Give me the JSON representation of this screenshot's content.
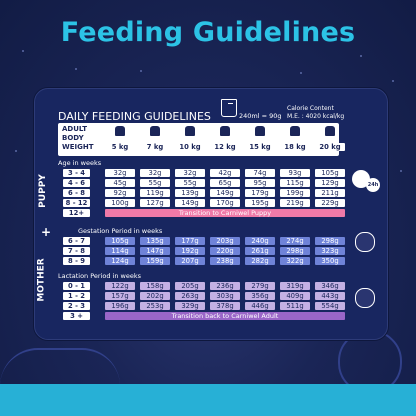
{
  "title": "Feeding Guidelines",
  "card_title": "DAILY FEEDING GUIDELINES",
  "measure": "240ml = 90g",
  "calorie": [
    "Calorie Content",
    "M.E. : 4020 kcal/kg"
  ],
  "header_label": [
    "ADULT",
    "BODY",
    "WEIGHT"
  ],
  "weights": [
    "5 kg",
    "7 kg",
    "10 kg",
    "12 kg",
    "15 kg",
    "18 kg",
    "20 kg"
  ],
  "puppy": {
    "label": "PUPPY",
    "section": "Age in weeks",
    "rows": [
      {
        "age": "3 - 4",
        "values": [
          "32g",
          "32g",
          "32g",
          "42g",
          "74g",
          "93g",
          "105g"
        ]
      },
      {
        "age": "4 - 6",
        "values": [
          "45g",
          "55g",
          "55g",
          "65g",
          "95g",
          "115g",
          "129g"
        ]
      },
      {
        "age": "6 - 8",
        "values": [
          "92g",
          "119g",
          "139g",
          "149g",
          "179g",
          "199g",
          "211g"
        ]
      },
      {
        "age": "8 - 12",
        "values": [
          "100g",
          "127g",
          "149g",
          "170g",
          "195g",
          "219g",
          "229g"
        ]
      }
    ],
    "transition_age": "12+",
    "transition": "Transition to Carniwel Puppy"
  },
  "mother": {
    "label": "MOTHER",
    "plus": "+",
    "gestation_section": "Gestation Period in weeks",
    "gestation": [
      {
        "age": "6 - 7",
        "values": [
          "105g",
          "135g",
          "177g",
          "203g",
          "240g",
          "274g",
          "298g"
        ]
      },
      {
        "age": "7 - 8",
        "values": [
          "114g",
          "147g",
          "192g",
          "220g",
          "261g",
          "298g",
          "323g"
        ]
      },
      {
        "age": "8 - 9",
        "values": [
          "124g",
          "159g",
          "207g",
          "238g",
          "282g",
          "322g",
          "350g"
        ]
      }
    ],
    "lactation_section": "Lactation Period in weeks",
    "lactation": [
      {
        "age": "0 - 1",
        "values": [
          "122g",
          "158g",
          "205g",
          "236g",
          "279g",
          "319g",
          "346g"
        ]
      },
      {
        "age": "1 - 2",
        "values": [
          "157g",
          "202g",
          "263g",
          "303g",
          "356g",
          "409g",
          "443g"
        ]
      },
      {
        "age": "2 - 3",
        "values": [
          "196g",
          "253g",
          "329g",
          "378g",
          "446g",
          "511g",
          "554g"
        ]
      }
    ],
    "transition_age": "3 +",
    "transition": "Transition back to Carniwel Adult"
  },
  "badge_text": "24h",
  "colors": {
    "title": "#2cc3e6",
    "background": "#182660",
    "puppy_banner": "#f07aa8",
    "adult_banner": "#9a66c8",
    "gestation": "#6f83d8"
  }
}
